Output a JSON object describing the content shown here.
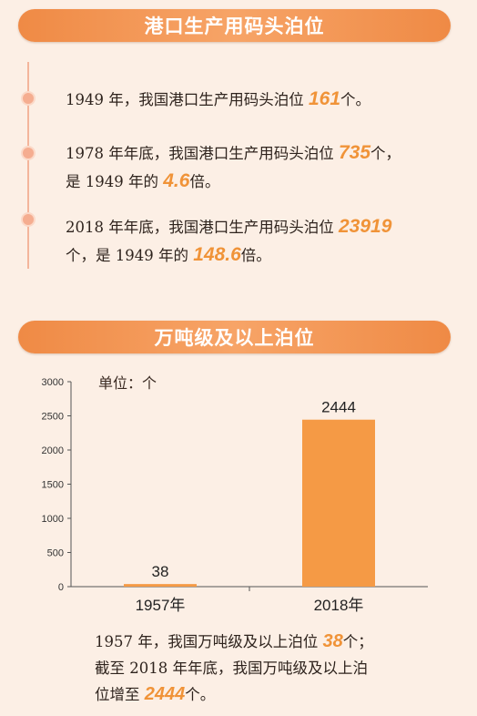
{
  "section1": {
    "title": "港口生产用码头泊位",
    "facts": [
      {
        "text_a": "1949 年，我国港口生产用码头泊位 ",
        "value": "161",
        "text_b": "个。",
        "text_c": "",
        "ratio": "",
        "text_d": ""
      },
      {
        "text_a": "1978 年年底，我国港口生产用码头泊位 ",
        "value": "735",
        "text_b": "个，",
        "text_c": "是 1949 年的 ",
        "ratio": "4.6",
        "text_d": "倍。"
      },
      {
        "text_a": "2018 年年底，我国港口生产用码头泊位 ",
        "value": "23919",
        "text_b": "",
        "text_c": "个，是 1949 年的 ",
        "ratio": "148.6",
        "text_d": "倍。"
      }
    ]
  },
  "section2": {
    "title": "万吨级及以上泊位",
    "unit_label": "单位：个",
    "caption": {
      "line1_a": "1957 年，我国万吨级及以上泊位 ",
      "line1_value": "38",
      "line1_b": "个；",
      "line2": "截至 2018 年年底，我国万吨级及以上泊",
      "line3_a": "位增至 ",
      "line3_value": "2444",
      "line3_b": "个。"
    }
  },
  "chart_data": {
    "type": "bar",
    "categories": [
      "1957年",
      "2018年"
    ],
    "values": [
      38,
      2444
    ],
    "data_labels": [
      "38",
      "2444"
    ],
    "title": "",
    "xlabel": "",
    "ylabel": "",
    "unit": "单位：个",
    "ylim": [
      0,
      3000
    ],
    "yticks": [
      0,
      500,
      1000,
      1500,
      2000,
      2500,
      3000
    ],
    "grid": false,
    "bar_color": "#f59a45"
  },
  "colors": {
    "accent": "#f09338",
    "banner": "#ef8a45",
    "background": "#fcefe5",
    "timeline": "#f5ad90"
  }
}
